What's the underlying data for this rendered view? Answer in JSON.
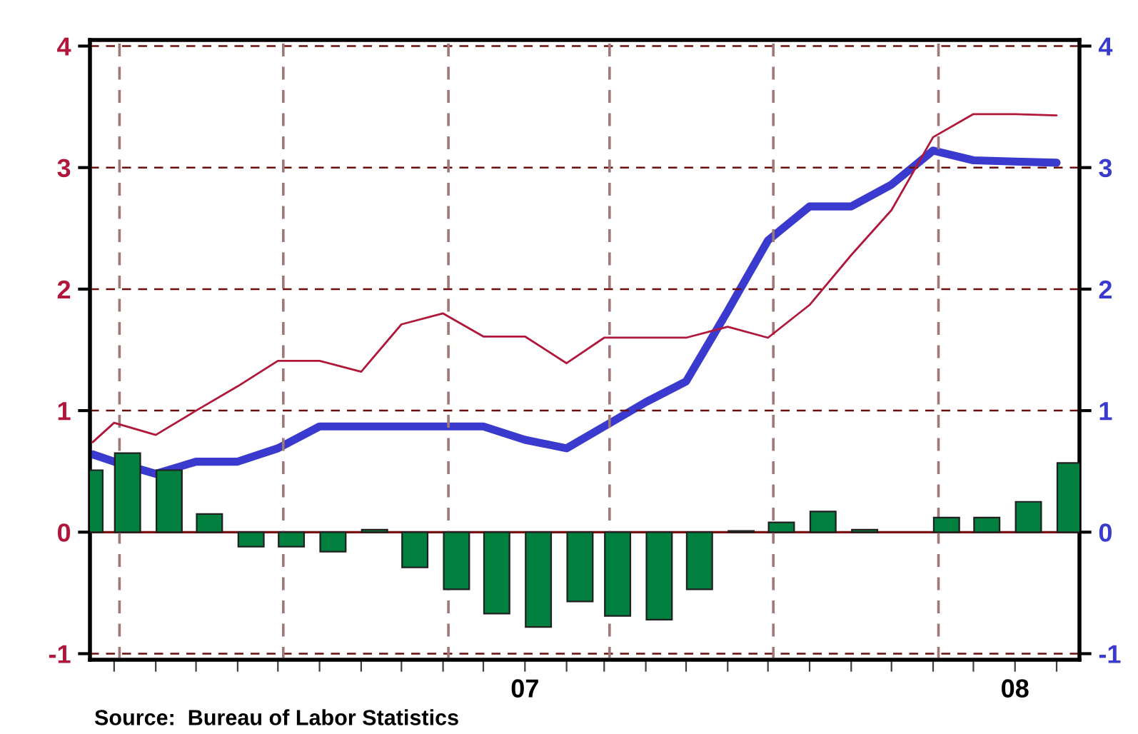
{
  "chart_data": {
    "type": "line",
    "series": [
      {
        "type": "bar",
        "color": "#007f3f",
        "axis": "y",
        "x": [
          "2006-02-11",
          "2006-03-11",
          "2006-04-11",
          "2006-05-11",
          "2006-06-11",
          "2006-07-11",
          "2006-08-11",
          "2006-09-11",
          "2006-10-11",
          "2006-11-11",
          "2006-12-11",
          "2007-01-11",
          "2007-02-11",
          "2007-03-11",
          "2007-04-11",
          "2007-05-11",
          "2007-06-11",
          "2007-07-11",
          "2007-08-11",
          "2007-09-11",
          "2007-10-11",
          "2007-11-11",
          "2007-12-11",
          "2008-01-11",
          "2008-02-11"
        ],
        "values": [
          0.51,
          0.65,
          0.51,
          0.15,
          -0.12,
          -0.12,
          -0.16,
          0.02,
          -0.29,
          -0.47,
          -0.67,
          -0.78,
          -0.57,
          -0.69,
          -0.72,
          -0.47,
          0.01,
          0.08,
          0.17,
          0.02,
          null,
          0.12,
          0.12,
          0.25,
          0.57
        ]
      },
      {
        "color": "#b0173a",
        "axis": "y",
        "x": [
          "2006-02-13",
          "2006-03-01",
          "2006-04-01",
          "2006-05-01",
          "2006-06-01",
          "2006-07-01",
          "2006-08-01",
          "2006-09-01",
          "2006-10-01",
          "2006-11-01",
          "2006-12-01",
          "2007-01-01",
          "2007-02-01",
          "2007-03-01",
          "2007-04-01",
          "2007-05-01",
          "2007-06-01",
          "2007-07-01",
          "2007-08-01",
          "2007-09-01",
          "2007-10-01",
          "2007-11-01",
          "2007-12-01",
          "2008-01-01",
          "2008-02-01"
        ],
        "values": [
          0.74,
          0.9,
          0.8,
          1.0,
          1.2,
          1.41,
          1.41,
          1.32,
          1.71,
          1.8,
          1.61,
          1.61,
          1.39,
          1.6,
          1.6,
          1.6,
          1.69,
          1.6,
          1.87,
          2.28,
          2.65,
          3.25,
          3.44,
          3.44,
          3.43
        ]
      },
      {
        "color": "#3a3acf",
        "axis": "y2",
        "x": [
          "2006-02-13",
          "2006-03-01",
          "2006-04-01",
          "2006-05-01",
          "2006-06-01",
          "2006-07-01",
          "2006-08-01",
          "2006-09-01",
          "2006-10-01",
          "2006-11-01",
          "2006-12-01",
          "2007-01-01",
          "2007-02-01",
          "2007-03-01",
          "2007-04-01",
          "2007-05-01",
          "2007-06-01",
          "2007-07-01",
          "2007-08-01",
          "2007-09-01",
          "2007-10-01",
          "2007-11-01",
          "2007-12-01",
          "2008-01-01",
          "2008-02-01"
        ],
        "values": [
          0.64,
          0.58,
          0.48,
          0.58,
          0.58,
          0.69,
          0.87,
          0.87,
          0.87,
          0.87,
          0.87,
          0.76,
          0.69,
          0.87,
          1.07,
          1.24,
          1.82,
          2.4,
          2.68,
          2.68,
          2.86,
          3.14,
          3.06,
          3.05,
          3.04
        ]
      }
    ],
    "xlim": [
      "2006-02-11",
      "2008-02-18"
    ],
    "xticks": [
      {
        "value": "2006-03-01",
        "label": null
      },
      {
        "value": "2006-04-01",
        "label": null
      },
      {
        "value": "2006-05-01",
        "label": null
      },
      {
        "value": "2006-06-01",
        "label": null
      },
      {
        "value": "2006-07-01",
        "label": null
      },
      {
        "value": "2006-08-01",
        "label": null
      },
      {
        "value": "2006-09-01",
        "label": null
      },
      {
        "value": "2006-10-01",
        "label": null
      },
      {
        "value": "2006-11-01",
        "label": null
      },
      {
        "value": "2006-12-01",
        "label": null
      },
      {
        "value": "2007-01-01",
        "label": "07"
      },
      {
        "value": "2007-02-01",
        "label": null
      },
      {
        "value": "2007-03-01",
        "label": null
      },
      {
        "value": "2007-04-01",
        "label": null
      },
      {
        "value": "2007-05-01",
        "label": null
      },
      {
        "value": "2007-06-01",
        "label": null
      },
      {
        "value": "2007-07-01",
        "label": null
      },
      {
        "value": "2007-08-01",
        "label": null
      },
      {
        "value": "2007-09-01",
        "label": null
      },
      {
        "value": "2007-10-01",
        "label": null
      },
      {
        "value": "2007-11-01",
        "label": null
      },
      {
        "value": "2007-12-01",
        "label": null
      },
      {
        "value": "2008-01-01",
        "label": "08"
      },
      {
        "value": "2008-02-01",
        "label": null
      }
    ],
    "ylim": [
      -1.05,
      4.05
    ],
    "yticks": [
      -1,
      0,
      1,
      2,
      3,
      4
    ],
    "y2lim": [
      -1.05,
      4.05
    ],
    "y2ticks": [
      -1,
      0,
      1,
      2,
      3,
      4
    ],
    "grid": "y",
    "ref_lines": [
      {
        "axis": "y",
        "value": 0,
        "color": "#7a1010",
        "line_style": "solid"
      },
      {
        "axis": "x",
        "value": "2006-03-05",
        "color": "#a07878",
        "line_style": "dashed"
      },
      {
        "axis": "x",
        "value": "2006-07-05",
        "color": "#a07878",
        "line_style": "dashed"
      },
      {
        "axis": "x",
        "value": "2006-11-05",
        "color": "#a07878",
        "line_style": "dashed"
      },
      {
        "axis": "x",
        "value": "2007-03-05",
        "color": "#a07878",
        "line_style": "dashed"
      },
      {
        "axis": "x",
        "value": "2007-07-05",
        "color": "#a07878",
        "line_style": "dashed"
      },
      {
        "axis": "x",
        "value": "2007-11-05",
        "color": "#a07878",
        "line_style": "dashed"
      }
    ],
    "annotations": [
      "Source:  Bureau of Labor Statistics"
    ]
  }
}
